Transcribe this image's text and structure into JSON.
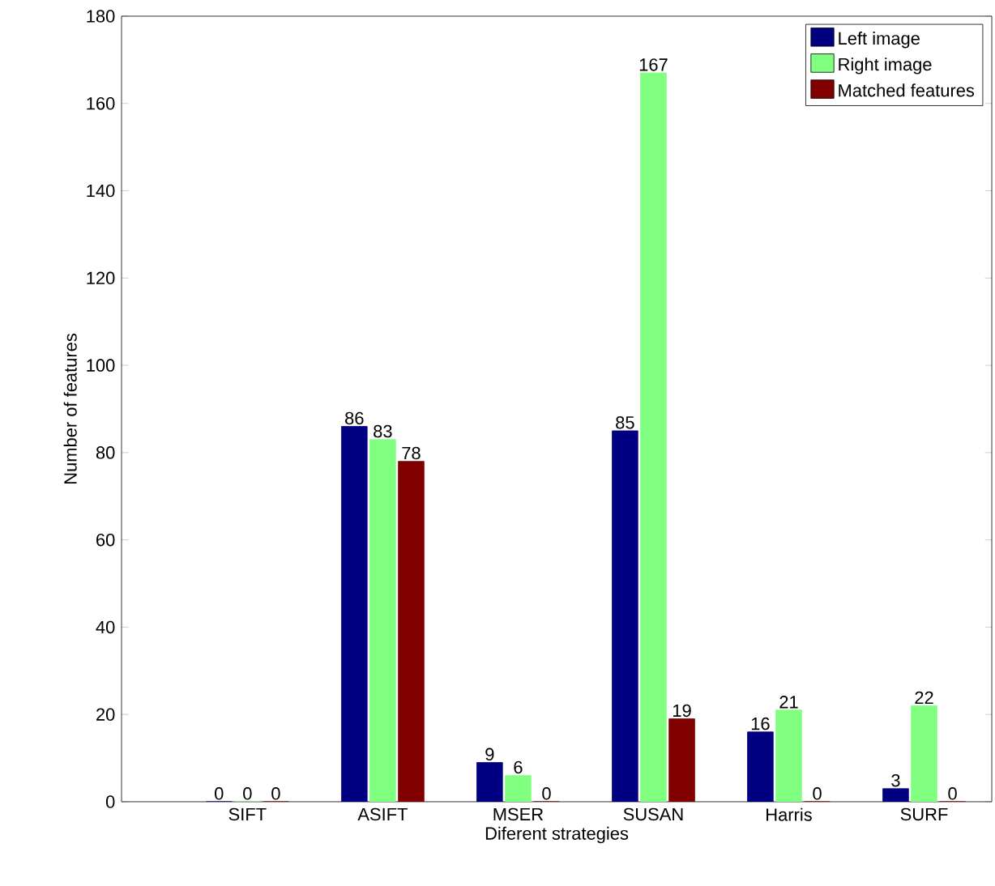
{
  "chart_data": {
    "type": "bar",
    "xlabel": "Diferent strategies",
    "ylabel": "Number of features",
    "categories": [
      "SIFT",
      "ASIFT",
      "MSER",
      "SUSAN",
      "Harris",
      "SURF"
    ],
    "series": [
      {
        "name": "Left image",
        "color": "#000080",
        "values": [
          0,
          86,
          9,
          85,
          16,
          3
        ]
      },
      {
        "name": "Right image",
        "color": "#80ff80",
        "values": [
          0,
          83,
          6,
          167,
          21,
          22
        ]
      },
      {
        "name": "Matched features",
        "color": "#800000",
        "values": [
          0,
          78,
          0,
          19,
          0,
          0
        ]
      }
    ],
    "ylim": [
      0,
      180
    ],
    "yticks": [
      0,
      20,
      40,
      60,
      80,
      100,
      120,
      140,
      160,
      180
    ],
    "data_labels": true,
    "legend": "top right",
    "grid": false
  }
}
